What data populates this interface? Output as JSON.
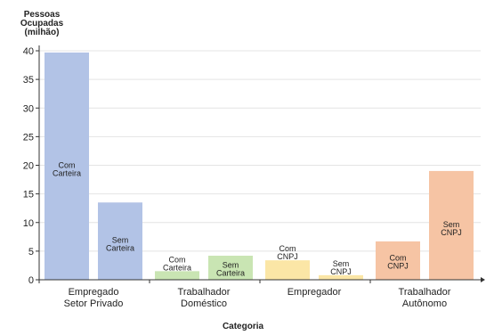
{
  "chart_data": {
    "type": "bar",
    "ylabel_lines": [
      "Pessoas",
      "Ocupadas",
      "(milhão)"
    ],
    "xlabel": "Categoria",
    "ylim": [
      0,
      40
    ],
    "yticks": [
      0,
      5,
      10,
      15,
      20,
      25,
      30,
      35,
      40
    ],
    "grid": true,
    "groups": [
      {
        "label_lines": [
          "Empregado",
          "Setor Privado"
        ],
        "bars": [
          {
            "label_lines": [
              "Com",
              "Carteira"
            ],
            "value": 39.7,
            "color": "#b2c3e6"
          },
          {
            "label_lines": [
              "Sem",
              "Carteira"
            ],
            "value": 13.5,
            "color": "#b2c3e6"
          }
        ]
      },
      {
        "label_lines": [
          "Trabalhador",
          "Doméstico"
        ],
        "bars": [
          {
            "label_lines": [
              "Com",
              "Carteira"
            ],
            "value": 1.5,
            "color": "#c9e5b3"
          },
          {
            "label_lines": [
              "Sem",
              "Carteira"
            ],
            "value": 4.2,
            "color": "#c9e5b3"
          }
        ]
      },
      {
        "label_lines": [
          "Empregador"
        ],
        "bars": [
          {
            "label_lines": [
              "Com",
              "CNPJ"
            ],
            "value": 3.4,
            "color": "#fbe6a6"
          },
          {
            "label_lines": [
              "Sem",
              "CNPJ"
            ],
            "value": 0.8,
            "color": "#fbe6a6"
          }
        ]
      },
      {
        "label_lines": [
          "Trabalhador",
          "Autônomo"
        ],
        "bars": [
          {
            "label_lines": [
              "Com",
              "CNPJ"
            ],
            "value": 6.7,
            "color": "#f6c4a4"
          },
          {
            "label_lines": [
              "Sem",
              "CNPJ"
            ],
            "value": 19.0,
            "color": "#f6c4a4"
          }
        ]
      }
    ]
  }
}
